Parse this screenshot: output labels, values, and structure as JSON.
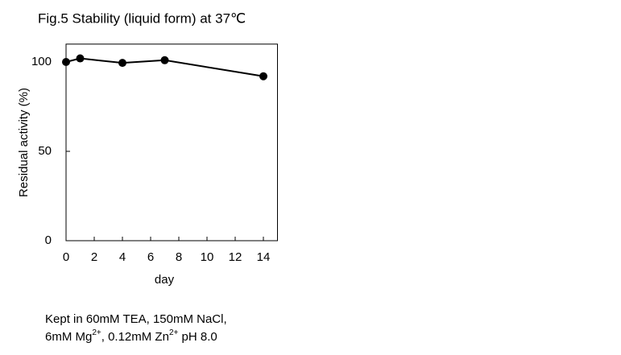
{
  "chart_data": {
    "type": "line",
    "title": "Fig.5 Stability (liquid form) at 37℃",
    "x_label": "day",
    "y_label": "Residual activity (%)",
    "x": [
      0,
      1,
      4,
      7,
      14
    ],
    "series": [
      {
        "name": "Residual activity",
        "color": "#000000",
        "values": [
          100,
          102,
          99.5,
          101,
          92
        ]
      }
    ],
    "xlim": [
      0,
      15
    ],
    "xticks": [
      0,
      2,
      4,
      6,
      8,
      10,
      12,
      14
    ],
    "ylim": [
      0,
      110
    ],
    "yticks": [
      0,
      50,
      100
    ],
    "grid": false,
    "note": [
      [
        {
          "text": "Kept in 60mM TEA, 150mM NaCl,"
        }
      ],
      [
        {
          "text": "6mM Mg"
        },
        {
          "sup": "2+"
        },
        {
          "text": ", 0.12mM Zn"
        },
        {
          "sup": "2+"
        },
        {
          "text": " pH 8.0"
        }
      ]
    ]
  }
}
